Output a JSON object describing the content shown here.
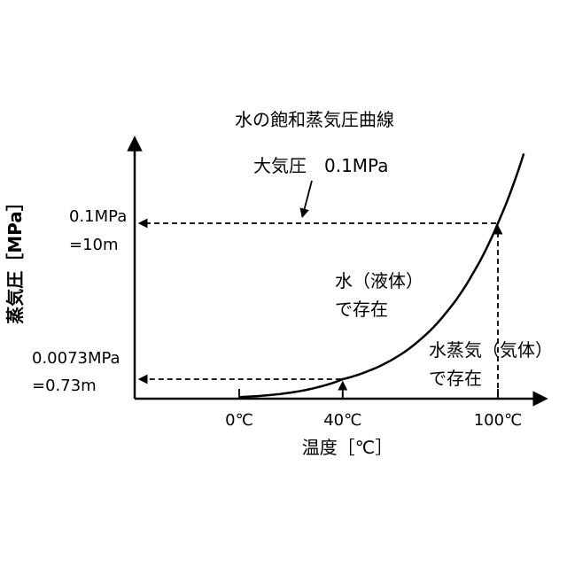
{
  "chart_data": {
    "type": "line",
    "title": "水の飽和蒸気圧曲線",
    "xlabel": "温度［℃］",
    "ylabel": "蒸気圧［MPa］",
    "x_ticks": [
      {
        "x": 0,
        "label": "0℃"
      },
      {
        "x": 40,
        "label": "40℃"
      },
      {
        "x": 100,
        "label": "100℃"
      }
    ],
    "series": [
      {
        "points": [
          {
            "x": 0,
            "y": 0.0006
          },
          {
            "x": 10,
            "y": 0.0012
          },
          {
            "x": 20,
            "y": 0.0023
          },
          {
            "x": 30,
            "y": 0.0042
          },
          {
            "x": 40,
            "y": 0.0073
          },
          {
            "x": 50,
            "y": 0.0123
          },
          {
            "x": 60,
            "y": 0.0199
          },
          {
            "x": 70,
            "y": 0.0312
          },
          {
            "x": 80,
            "y": 0.0474
          },
          {
            "x": 90,
            "y": 0.0701
          },
          {
            "x": 100,
            "y": 0.1013
          },
          {
            "x": 110,
            "y": 0.1433
          }
        ]
      }
    ],
    "reference_points": [
      {
        "x": 40,
        "y": 0.0073,
        "label_line1": "0.0073MPa",
        "label_line2": "=0.73m"
      },
      {
        "x": 100,
        "y": 0.1013,
        "label_line1": "0.1MPa",
        "label_line2": "=10m"
      }
    ],
    "annotations": {
      "atmosphere": "大気圧　0.1MPa",
      "liquid_line1": "水（液体）",
      "liquid_line2": "で存在",
      "gas_line1": "水蒸気（気体）",
      "gas_line2": "で存在"
    }
  }
}
